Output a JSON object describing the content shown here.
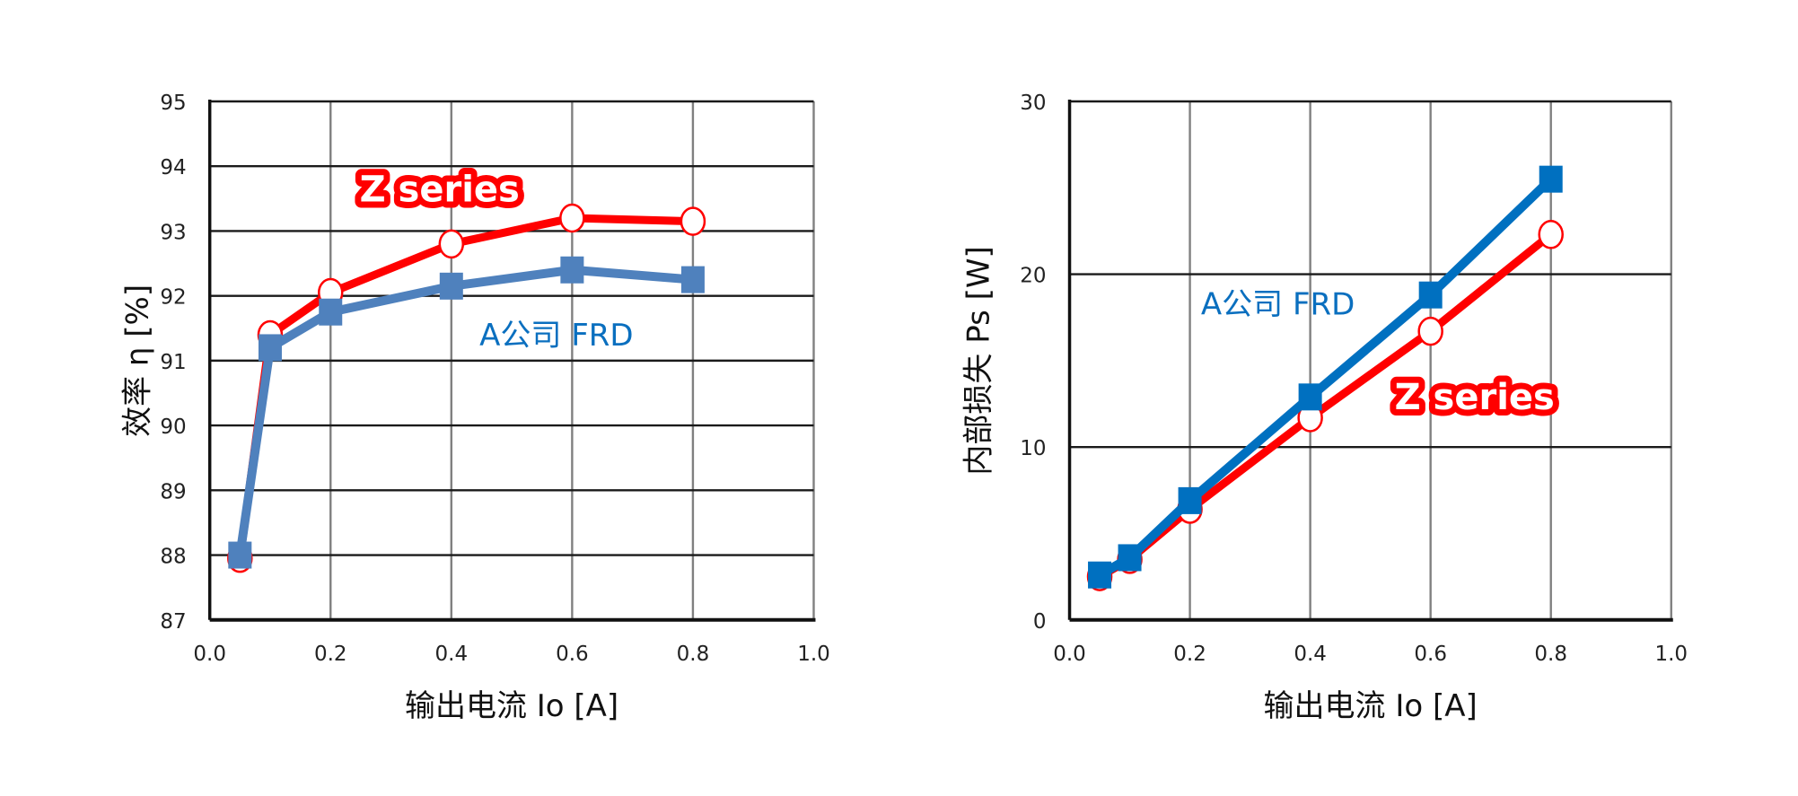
{
  "colors": {
    "z_series": "#ff0000",
    "a_company_left": "#4f81bd",
    "a_company_right": "#0070c0",
    "label_blue": "#0a6fbf",
    "grid_h": "#1a1a1a",
    "grid_v": "#808080"
  },
  "chart_data": [
    {
      "type": "line",
      "title": "",
      "xlabel": "输出电流 Io [A]",
      "ylabel": "效率 η [%]",
      "x_ticks": [
        "0.0",
        "0.2",
        "0.4",
        "0.6",
        "0.8",
        "1.0"
      ],
      "y_ticks": [
        "87",
        "88",
        "89",
        "90",
        "91",
        "92",
        "93",
        "94",
        "95"
      ],
      "xlim": [
        0.0,
        1.0
      ],
      "ylim": [
        87,
        95
      ],
      "grid": true,
      "legend": "inline annotations",
      "annotations": [
        "Z series",
        "A公司 FRD"
      ],
      "x": [
        0.05,
        0.1,
        0.2,
        0.4,
        0.6,
        0.8
      ],
      "series": [
        {
          "name": "Z series",
          "marker": "open-circle",
          "values": [
            87.95,
            91.4,
            92.05,
            92.8,
            93.2,
            93.15
          ]
        },
        {
          "name": "A公司 FRD",
          "marker": "filled-square",
          "values": [
            88.0,
            91.2,
            91.75,
            92.15,
            92.4,
            92.25
          ]
        }
      ]
    },
    {
      "type": "line",
      "title": "",
      "xlabel": "输出电流 Io [A]",
      "ylabel": "内部损失 Ps [W]",
      "x_ticks": [
        "0.0",
        "0.2",
        "0.4",
        "0.6",
        "0.8",
        "1.0"
      ],
      "y_ticks": [
        "0",
        "10",
        "20",
        "30"
      ],
      "xlim": [
        0.0,
        1.0
      ],
      "ylim": [
        0,
        30
      ],
      "grid": true,
      "legend": "inline annotations",
      "annotations": [
        "A公司 FRD",
        "Z series"
      ],
      "x": [
        0.05,
        0.1,
        0.2,
        0.4,
        0.6,
        0.8
      ],
      "series": [
        {
          "name": "Z series",
          "marker": "open-circle",
          "values": [
            2.5,
            3.5,
            6.4,
            11.7,
            16.7,
            22.3
          ]
        },
        {
          "name": "A公司 FRD",
          "marker": "filled-square",
          "values": [
            2.6,
            3.6,
            6.9,
            12.9,
            18.8,
            25.5
          ]
        }
      ]
    }
  ],
  "left_chart": {
    "ylabel_main": "效率 η",
    "ylabel_unit": "[%]",
    "xlabel": "输出电流 Io [A]",
    "z_label": "Z series",
    "a_label": "A公司 FRD"
  },
  "right_chart": {
    "ylabel": "内部损失 Ps [W]",
    "xlabel": "输出电流 Io [A]",
    "z_label": "Z series",
    "a_label": "A公司 FRD"
  }
}
